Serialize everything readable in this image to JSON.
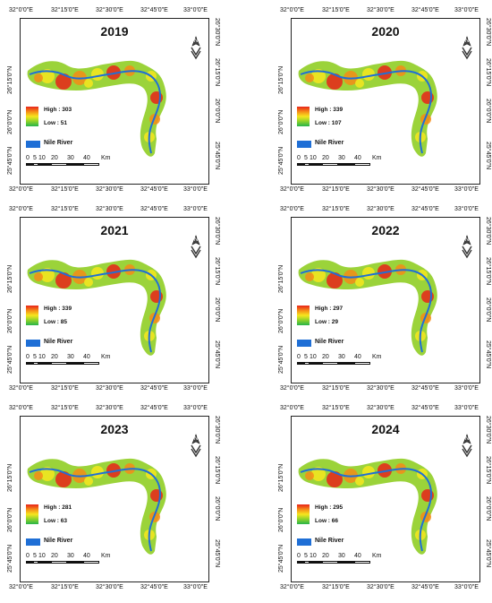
{
  "panels": [
    {
      "year": "2019",
      "high": "High : 303",
      "low": "Low : 51"
    },
    {
      "year": "2020",
      "high": "High : 339",
      "low": "Low : 107"
    },
    {
      "year": "2021",
      "high": "High : 339",
      "low": "Low : 85"
    },
    {
      "year": "2022",
      "high": "High : 297",
      "low": "Low : 29"
    },
    {
      "year": "2023",
      "high": "High : 281",
      "low": "Low : 63"
    },
    {
      "year": "2024",
      "high": "High : 295",
      "low": "Low : 66"
    }
  ],
  "legend": {
    "river_label": "Nile River",
    "north_label": "N"
  },
  "scale_labels": [
    "0",
    "5",
    "10",
    "20",
    "30",
    "40",
    "Km"
  ],
  "x_ticks": [
    "32°0'0\"E",
    "32°15'0\"E",
    "32°30'0\"E",
    "32°45'0\"E",
    "33°0'0\"E"
  ],
  "y_ticks_left": [
    "26°15'0\"N",
    "26°0'0\"N",
    "25°45'0\"N"
  ],
  "y_ticks_right": [
    "26°30'0\"N",
    "26°15'0\"N",
    "26°0'0\"N",
    "25°45'0\"N"
  ],
  "colors": {
    "high": "#e8231a",
    "mid": "#f6e61e",
    "low": "#25b34a",
    "river": "#1f6fd6"
  }
}
